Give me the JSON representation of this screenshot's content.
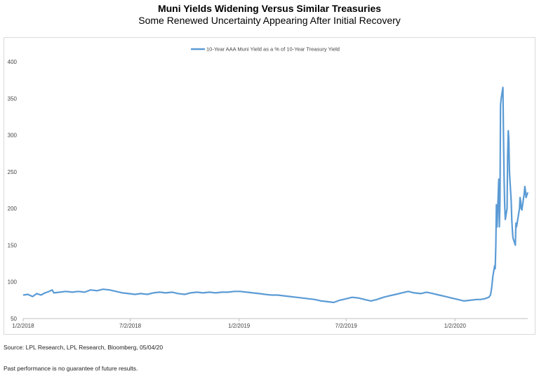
{
  "header": {
    "title": "Muni Yields Widening Versus Similar Treasuries",
    "subtitle": "Some Renewed Uncertainty Appearing After Initial Recovery"
  },
  "footer": {
    "source": "Source: LPL Research, LPL Research, Bloomberg, 05/04/20",
    "disclaimer": "Past performance is no guarantee of future results."
  },
  "chart_data": {
    "type": "line",
    "title": "Muni Yields Widening Versus Similar Treasuries",
    "subtitle": "Some Renewed Uncertainty Appearing After Initial Recovery",
    "xlabel": "",
    "ylabel": "",
    "ylim": [
      50,
      400
    ],
    "yticks": [
      50,
      100,
      150,
      200,
      250,
      300,
      350,
      400
    ],
    "xlim": [
      "2018-01-02",
      "2020-05-04"
    ],
    "xticks": [
      "1/2/2018",
      "7/2/2018",
      "1/2/2019",
      "7/2/2019",
      "1/2/2020"
    ],
    "xtick_dates": [
      "2018-01-02",
      "2018-07-02",
      "2019-01-02",
      "2019-07-02",
      "2020-01-02"
    ],
    "grid": false,
    "legend_position": "top-center",
    "series": [
      {
        "name": "10-Year AAA Muni Yield as a % of 10-Year Treasury Yield",
        "color": "#5b9bd5",
        "points": [
          [
            "2018-01-02",
            82
          ],
          [
            "2018-01-10",
            83
          ],
          [
            "2018-01-18",
            80
          ],
          [
            "2018-01-25",
            84
          ],
          [
            "2018-02-01",
            82
          ],
          [
            "2018-02-08",
            85
          ],
          [
            "2018-02-15",
            87
          ],
          [
            "2018-02-20",
            89
          ],
          [
            "2018-02-23",
            85
          ],
          [
            "2018-03-05",
            86
          ],
          [
            "2018-03-15",
            87
          ],
          [
            "2018-03-26",
            86
          ],
          [
            "2018-04-05",
            87
          ],
          [
            "2018-04-16",
            86
          ],
          [
            "2018-04-26",
            89
          ],
          [
            "2018-05-07",
            88
          ],
          [
            "2018-05-17",
            90
          ],
          [
            "2018-05-28",
            89
          ],
          [
            "2018-06-08",
            87
          ],
          [
            "2018-06-19",
            85
          ],
          [
            "2018-06-29",
            84
          ],
          [
            "2018-07-10",
            83
          ],
          [
            "2018-07-20",
            84
          ],
          [
            "2018-07-31",
            83
          ],
          [
            "2018-08-10",
            85
          ],
          [
            "2018-08-21",
            86
          ],
          [
            "2018-08-31",
            85
          ],
          [
            "2018-09-11",
            86
          ],
          [
            "2018-09-21",
            84
          ],
          [
            "2018-10-02",
            83
          ],
          [
            "2018-10-12",
            85
          ],
          [
            "2018-10-23",
            86
          ],
          [
            "2018-11-02",
            85
          ],
          [
            "2018-11-13",
            86
          ],
          [
            "2018-11-23",
            85
          ],
          [
            "2018-12-04",
            86
          ],
          [
            "2018-12-14",
            86
          ],
          [
            "2018-12-25",
            87
          ],
          [
            "2019-01-04",
            87
          ],
          [
            "2019-01-15",
            86
          ],
          [
            "2019-01-25",
            85
          ],
          [
            "2019-02-05",
            84
          ],
          [
            "2019-02-15",
            83
          ],
          [
            "2019-02-26",
            82
          ],
          [
            "2019-03-08",
            82
          ],
          [
            "2019-03-19",
            81
          ],
          [
            "2019-03-29",
            80
          ],
          [
            "2019-04-09",
            79
          ],
          [
            "2019-04-19",
            78
          ],
          [
            "2019-04-30",
            77
          ],
          [
            "2019-05-10",
            76
          ],
          [
            "2019-05-21",
            74
          ],
          [
            "2019-05-31",
            73
          ],
          [
            "2019-06-11",
            72
          ],
          [
            "2019-06-21",
            75
          ],
          [
            "2019-07-02",
            77
          ],
          [
            "2019-07-12",
            79
          ],
          [
            "2019-07-23",
            78
          ],
          [
            "2019-08-02",
            76
          ],
          [
            "2019-08-13",
            74
          ],
          [
            "2019-08-23",
            76
          ],
          [
            "2019-09-03",
            79
          ],
          [
            "2019-09-13",
            81
          ],
          [
            "2019-09-24",
            83
          ],
          [
            "2019-10-04",
            85
          ],
          [
            "2019-10-15",
            87
          ],
          [
            "2019-10-25",
            85
          ],
          [
            "2019-11-05",
            84
          ],
          [
            "2019-11-15",
            86
          ],
          [
            "2019-11-26",
            84
          ],
          [
            "2019-12-06",
            82
          ],
          [
            "2019-12-17",
            80
          ],
          [
            "2019-12-27",
            78
          ],
          [
            "2020-01-07",
            76
          ],
          [
            "2020-01-17",
            74
          ],
          [
            "2020-01-28",
            75
          ],
          [
            "2020-02-07",
            76
          ],
          [
            "2020-02-14",
            76
          ],
          [
            "2020-02-21",
            77
          ],
          [
            "2020-02-28",
            79
          ],
          [
            "2020-03-02",
            82
          ],
          [
            "2020-03-04",
            92
          ],
          [
            "2020-03-06",
            108
          ],
          [
            "2020-03-09",
            122
          ],
          [
            "2020-03-10",
            118
          ],
          [
            "2020-03-11",
            150
          ],
          [
            "2020-03-12",
            205
          ],
          [
            "2020-03-13",
            175
          ],
          [
            "2020-03-16",
            240
          ],
          [
            "2020-03-17",
            175
          ],
          [
            "2020-03-18",
            210
          ],
          [
            "2020-03-19",
            340
          ],
          [
            "2020-03-20",
            350
          ],
          [
            "2020-03-23",
            365
          ],
          [
            "2020-03-24",
            300
          ],
          [
            "2020-03-25",
            240
          ],
          [
            "2020-03-26",
            205
          ],
          [
            "2020-03-27",
            185
          ],
          [
            "2020-03-30",
            200
          ],
          [
            "2020-03-31",
            270
          ],
          [
            "2020-04-01",
            306
          ],
          [
            "2020-04-02",
            295
          ],
          [
            "2020-04-03",
            250
          ],
          [
            "2020-04-06",
            210
          ],
          [
            "2020-04-07",
            185
          ],
          [
            "2020-04-08",
            170
          ],
          [
            "2020-04-09",
            160
          ],
          [
            "2020-04-13",
            150
          ],
          [
            "2020-04-14",
            180
          ],
          [
            "2020-04-15",
            175
          ],
          [
            "2020-04-16",
            180
          ],
          [
            "2020-04-17",
            185
          ],
          [
            "2020-04-20",
            200
          ],
          [
            "2020-04-21",
            215
          ],
          [
            "2020-04-22",
            210
          ],
          [
            "2020-04-23",
            200
          ],
          [
            "2020-04-24",
            198
          ],
          [
            "2020-04-27",
            215
          ],
          [
            "2020-04-28",
            220
          ],
          [
            "2020-04-29",
            230
          ],
          [
            "2020-04-30",
            225
          ],
          [
            "2020-05-01",
            215
          ],
          [
            "2020-05-04",
            222
          ]
        ]
      }
    ]
  }
}
